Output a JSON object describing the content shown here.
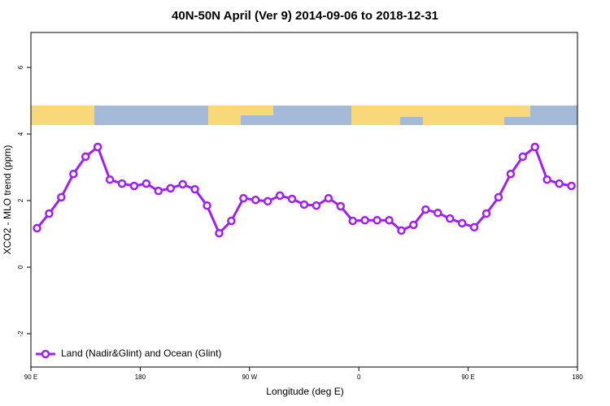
{
  "chart_data": {
    "type": "line",
    "title": "40N-50N April (Ver 9)   2014-09-06 to 2018-12-31",
    "x_label": "Longitude (deg E)",
    "y_label": "XCO2 - MLO trend (ppm)",
    "x": [
      95,
      105,
      115,
      125,
      135,
      145,
      155,
      165,
      175,
      185,
      195,
      205,
      215,
      225,
      235,
      245,
      255,
      265,
      275,
      285,
      295,
      305,
      315,
      325,
      335,
      345,
      355,
      365,
      375,
      385,
      395,
      405,
      415,
      425,
      435,
      445,
      455,
      465,
      475,
      485,
      495,
      505,
      515,
      525,
      535
    ],
    "series": [
      {
        "name": "Land (Nadir&Glint) and Ocean (Glint)",
        "color": "#a020f0",
        "values": [
          1.17,
          1.61,
          2.1,
          2.8,
          3.32,
          3.61,
          2.63,
          2.51,
          2.44,
          2.51,
          2.29,
          2.37,
          2.49,
          2.34,
          1.85,
          1.02,
          1.39,
          2.07,
          2.02,
          1.98,
          2.15,
          2.05,
          1.88,
          1.85,
          2.07,
          1.83,
          1.39,
          1.41,
          1.41,
          1.41,
          1.1,
          1.27,
          1.73,
          1.63,
          1.46,
          1.32,
          1.2,
          1.61,
          2.1,
          2.8,
          3.32,
          3.61,
          2.63,
          2.51,
          2.44
        ]
      }
    ],
    "xlim": [
      90,
      540
    ],
    "xticks": [
      {
        "value": 90,
        "label": "90 E"
      },
      {
        "value": 180,
        "label": "180"
      },
      {
        "value": 270,
        "label": "90 W"
      },
      {
        "value": 360,
        "label": "0"
      },
      {
        "value": 450,
        "label": "90 E"
      },
      {
        "value": 540,
        "label": "180"
      }
    ],
    "ylim": [
      -3,
      7.05
    ],
    "yticks": [
      -2,
      0,
      2,
      4,
      6
    ],
    "legend": "bottom-left"
  }
}
